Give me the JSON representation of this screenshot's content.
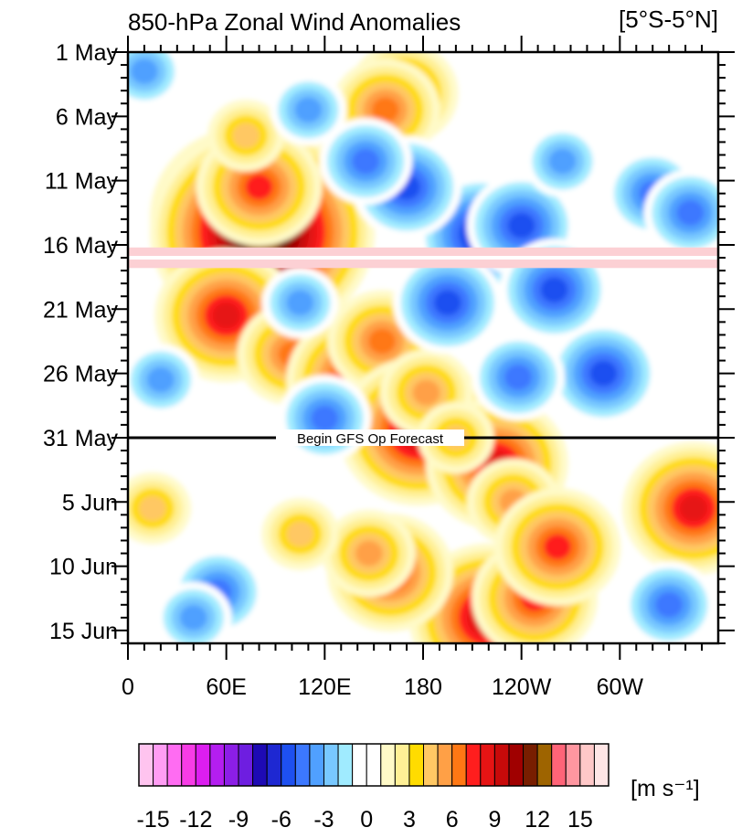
{
  "chart_data": {
    "type": "heatmap",
    "title": "850-hPa Zonal Wind Anomalies",
    "region_label": "[5°S-5°N]",
    "annotation": "Begin GFS Op Forecast",
    "annotation_date": "31 May",
    "x_ticks": [
      "0",
      "60E",
      "120E",
      "180",
      "120W",
      "60W"
    ],
    "x_tick_lon": [
      0,
      60,
      120,
      180,
      240,
      300
    ],
    "xlim": [
      0,
      360
    ],
    "y_ticks": [
      "1 May",
      "6 May",
      "11 May",
      "16 May",
      "21 May",
      "26 May",
      "31 May",
      "5 Jun",
      "10 Jun",
      "15 Jun"
    ],
    "y_tick_day": [
      0,
      5,
      10,
      15,
      20,
      25,
      30,
      35,
      40,
      45
    ],
    "ylim_days": [
      0,
      46
    ],
    "missing_days": [
      15.2,
      16.8
    ],
    "colorbar": {
      "units": "[m s⁻¹]",
      "tick_labels": [
        "-15",
        "-12",
        "-9",
        "-6",
        "-3",
        "0",
        "3",
        "6",
        "9",
        "12",
        "15"
      ],
      "colors": [
        "#ffc4ef",
        "#ff9df4",
        "#ff6cf2",
        "#f73ce6",
        "#dc1ef0",
        "#b41ef0",
        "#8c1ee6",
        "#6e1ee0",
        "#1e0ab4",
        "#1e28d2",
        "#1e50f0",
        "#3c78ff",
        "#50a0ff",
        "#78c8ff",
        "#a0ebff",
        "#ffffff",
        "#ffffff",
        "#fffac8",
        "#fff096",
        "#ffdc00",
        "#ffc864",
        "#ffa046",
        "#ff7814",
        "#ff1e1e",
        "#e61414",
        "#c80a0a",
        "#a00000",
        "#781e00",
        "#9e6400",
        "#ff6478",
        "#ff96a0",
        "#ffc8c8",
        "#ffe6e6"
      ]
    },
    "anomaly_features": [
      {
        "lon": 72,
        "day": 12.8,
        "value": 11
      },
      {
        "lon": 82,
        "day": 14.0,
        "value": 13
      },
      {
        "lon": 80,
        "day": 10.5,
        "value": 7
      },
      {
        "lon": 72,
        "day": 6.5,
        "value": 4
      },
      {
        "lon": 60,
        "day": 20.5,
        "value": 8
      },
      {
        "lon": 100,
        "day": 23.5,
        "value": 6
      },
      {
        "lon": 140,
        "day": 25.5,
        "value": 8
      },
      {
        "lon": 155,
        "day": 22.5,
        "value": 6
      },
      {
        "lon": 177,
        "day": 29.5,
        "value": 9
      },
      {
        "lon": 182,
        "day": 26.5,
        "value": 5
      },
      {
        "lon": 225,
        "day": 32.0,
        "value": 8
      },
      {
        "lon": 235,
        "day": 35.0,
        "value": 5
      },
      {
        "lon": 220,
        "day": 44.0,
        "value": 9
      },
      {
        "lon": 248,
        "day": 42.5,
        "value": 7
      },
      {
        "lon": 262,
        "day": 38.5,
        "value": 7
      },
      {
        "lon": 160,
        "day": 40.5,
        "value": 7
      },
      {
        "lon": 147,
        "day": 39.0,
        "value": 5
      },
      {
        "lon": 345,
        "day": 35.5,
        "value": 8
      },
      {
        "lon": 168,
        "day": 3.2,
        "value": 6
      },
      {
        "lon": 157,
        "day": 4.5,
        "value": 6
      },
      {
        "lon": 105,
        "day": 37.5,
        "value": 4
      },
      {
        "lon": 215,
        "day": 14.2,
        "value": -7
      },
      {
        "lon": 240,
        "day": 13.5,
        "value": -6
      },
      {
        "lon": 170,
        "day": 10.5,
        "value": -6
      },
      {
        "lon": 145,
        "day": 8.5,
        "value": -5
      },
      {
        "lon": 290,
        "day": 25.0,
        "value": -6
      },
      {
        "lon": 238,
        "day": 25.3,
        "value": -5
      },
      {
        "lon": 260,
        "day": 18.5,
        "value": -6
      },
      {
        "lon": 195,
        "day": 19.5,
        "value": -6
      },
      {
        "lon": 120,
        "day": 28.5,
        "value": -5
      },
      {
        "lon": 20,
        "day": 25.5,
        "value": -4
      },
      {
        "lon": 55,
        "day": 42.0,
        "value": -5
      },
      {
        "lon": 40,
        "day": 44.0,
        "value": -4
      },
      {
        "lon": 330,
        "day": 43.0,
        "value": -5
      },
      {
        "lon": 320,
        "day": 11.0,
        "value": -5
      },
      {
        "lon": 343,
        "day": 12.5,
        "value": -5
      },
      {
        "lon": 265,
        "day": 8.5,
        "value": -4
      },
      {
        "lon": 105,
        "day": 19.5,
        "value": -4
      },
      {
        "lon": 10,
        "day": 1.5,
        "value": -4
      },
      {
        "lon": 110,
        "day": 4.5,
        "value": -4
      },
      {
        "lon": 200,
        "day": 30.0,
        "value": 4
      },
      {
        "lon": 15,
        "day": 35.5,
        "value": 4
      }
    ]
  }
}
